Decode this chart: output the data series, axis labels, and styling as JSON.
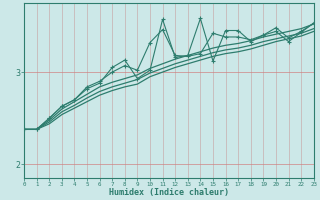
{
  "xlabel": "Humidex (Indice chaleur)",
  "ylabel": "",
  "x": [
    0,
    1,
    2,
    3,
    4,
    5,
    6,
    7,
    8,
    9,
    10,
    11,
    12,
    13,
    14,
    15,
    16,
    17,
    18,
    19,
    20,
    21,
    22,
    23
  ],
  "line_straight1": [
    2.38,
    2.38,
    2.48,
    2.6,
    2.68,
    2.76,
    2.84,
    2.89,
    2.93,
    2.97,
    3.04,
    3.09,
    3.14,
    3.18,
    3.22,
    3.26,
    3.29,
    3.31,
    3.34,
    3.38,
    3.41,
    3.44,
    3.47,
    3.52
  ],
  "line_straight2": [
    2.38,
    2.38,
    2.46,
    2.57,
    2.64,
    2.72,
    2.79,
    2.84,
    2.88,
    2.92,
    2.99,
    3.04,
    3.09,
    3.13,
    3.17,
    3.21,
    3.24,
    3.26,
    3.29,
    3.33,
    3.36,
    3.39,
    3.42,
    3.47
  ],
  "line_straight3": [
    2.38,
    2.38,
    2.44,
    2.54,
    2.61,
    2.68,
    2.75,
    2.8,
    2.84,
    2.87,
    2.95,
    3.0,
    3.05,
    3.09,
    3.13,
    3.17,
    3.2,
    3.22,
    3.25,
    3.29,
    3.33,
    3.36,
    3.39,
    3.44
  ],
  "line_wiggly1": [
    2.38,
    2.38,
    2.5,
    2.63,
    2.7,
    2.84,
    2.9,
    3.0,
    3.07,
    3.02,
    3.32,
    3.46,
    3.18,
    3.17,
    3.2,
    3.42,
    3.38,
    3.38,
    3.35,
    3.4,
    3.44,
    3.33,
    3.43,
    3.53
  ],
  "line_wiggly2": [
    2.38,
    2.38,
    2.5,
    2.63,
    2.7,
    2.82,
    2.88,
    3.05,
    3.13,
    2.93,
    3.02,
    3.57,
    3.16,
    3.18,
    3.58,
    3.12,
    3.45,
    3.45,
    3.33,
    3.4,
    3.48,
    3.37,
    3.44,
    3.53
  ],
  "color_main": "#2e7d6e",
  "bg_color": "#cce8e8",
  "hgrid_color": "#d08080",
  "vgrid_color": "#c8a0a0",
  "ylim": [
    1.85,
    3.75
  ],
  "xlim": [
    0,
    23
  ],
  "yticks": [
    2,
    3
  ],
  "xticks": [
    0,
    1,
    2,
    3,
    4,
    5,
    6,
    7,
    8,
    9,
    10,
    11,
    12,
    13,
    14,
    15,
    16,
    17,
    18,
    19,
    20,
    21,
    22,
    23
  ]
}
